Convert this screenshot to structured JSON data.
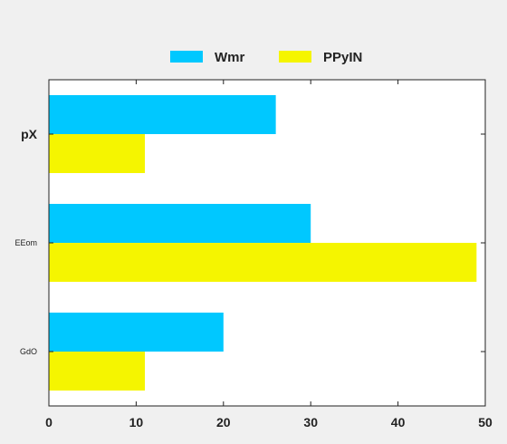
{
  "chart_data": {
    "type": "bar",
    "orientation": "horizontal",
    "categories": [
      "pX",
      "EEom",
      "GdO"
    ],
    "category_label_styles": [
      "bold",
      "small",
      "small"
    ],
    "series": [
      {
        "name": "Wmr",
        "color": "#00c8ff",
        "values": [
          26,
          30,
          20
        ]
      },
      {
        "name": "PPyIN",
        "color": "#f5f500",
        "values": [
          11,
          49,
          11
        ]
      }
    ],
    "x_ticks": [
      0,
      10,
      20,
      30,
      40,
      50
    ],
    "xlim": [
      0,
      50
    ],
    "xlabel": "",
    "ylabel": "",
    "title": "",
    "grid": false,
    "legend_position": "top-center",
    "background": "#f0f0f0",
    "plot_background": "#ffffff"
  }
}
